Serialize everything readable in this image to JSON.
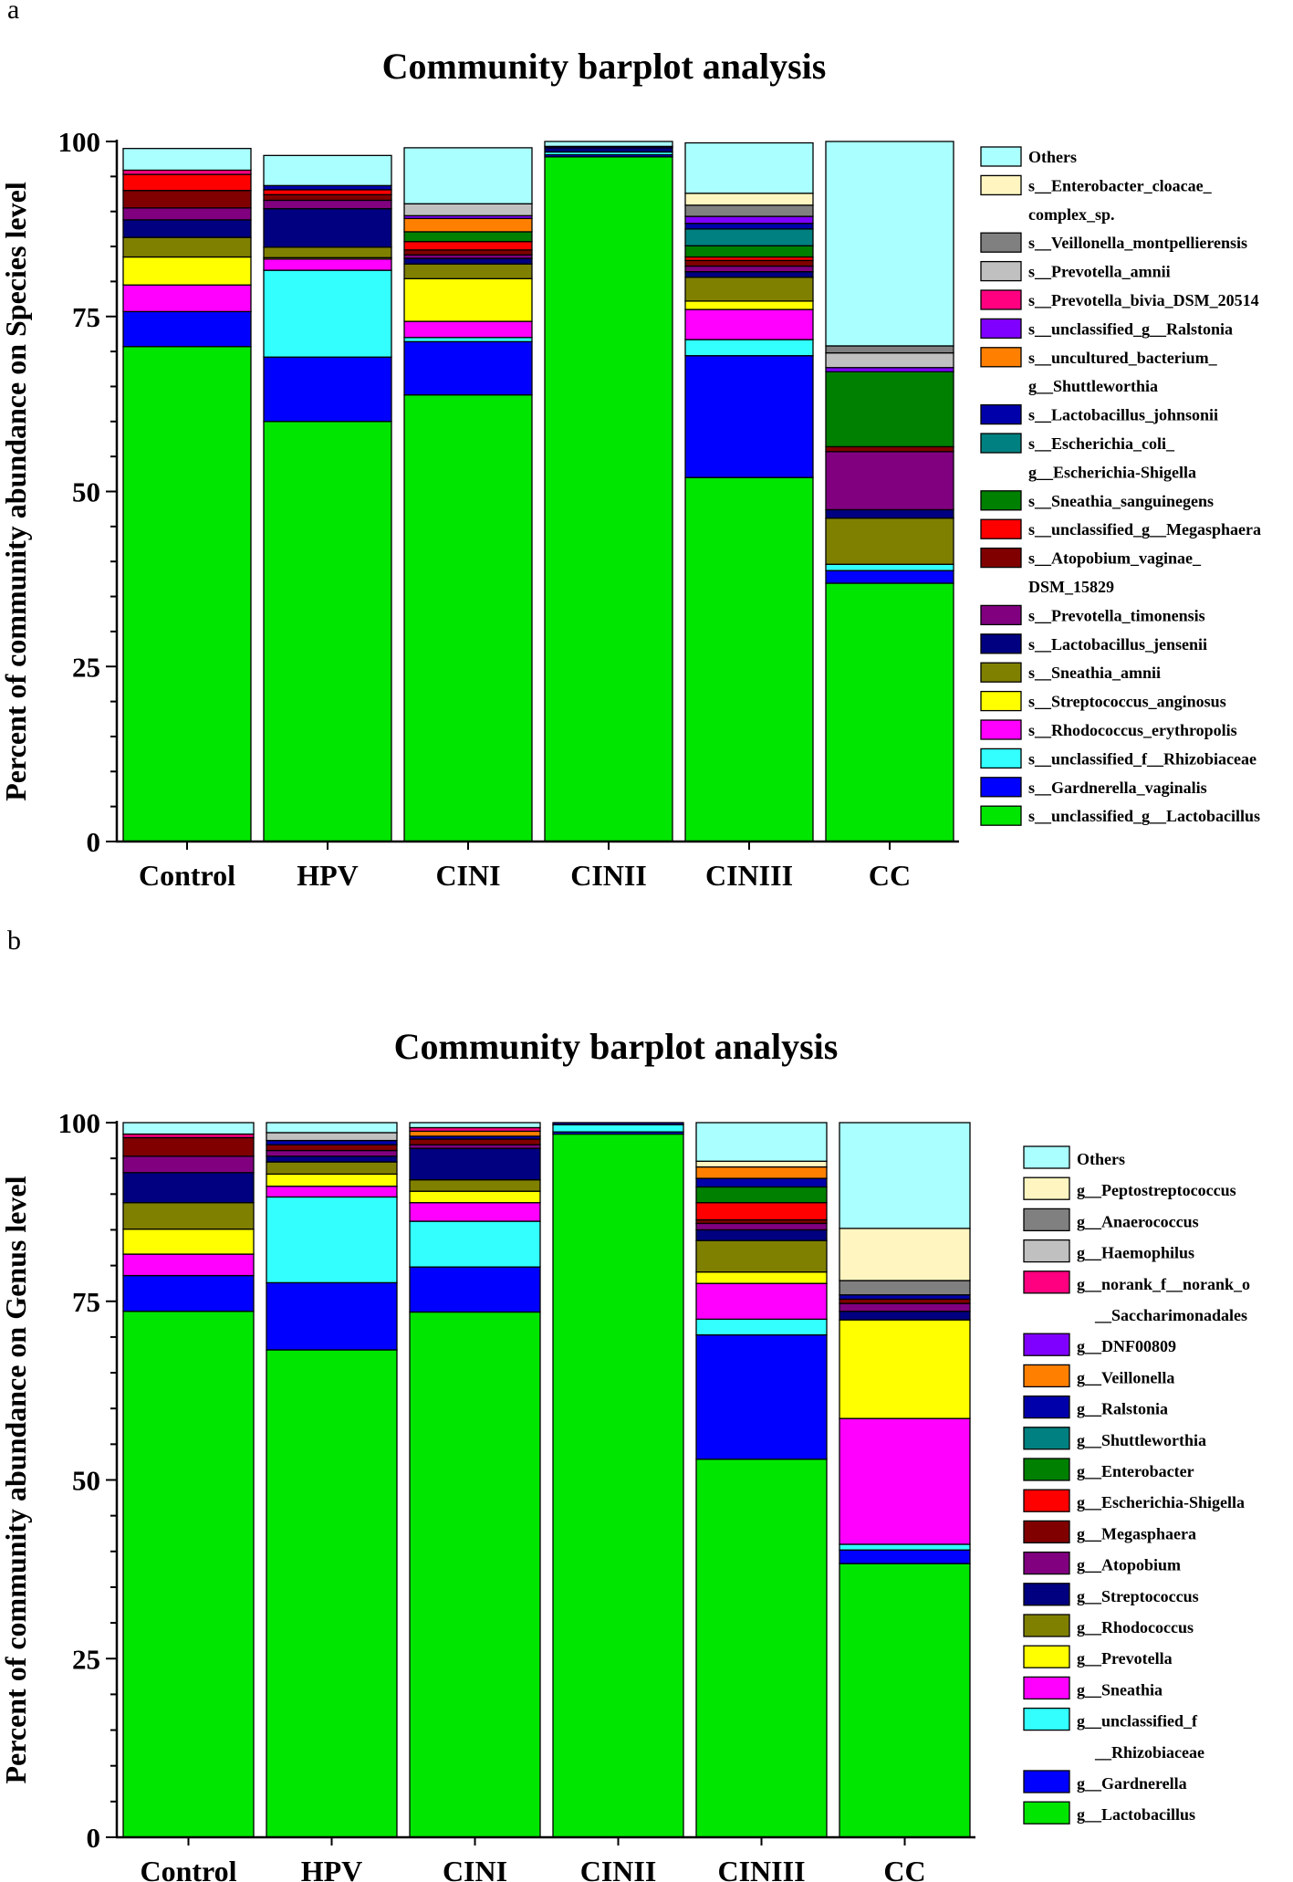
{
  "chart_data": [
    {
      "panel": "a",
      "type": "bar",
      "stacked": true,
      "title": "Community barplot analysis",
      "xlabel": "",
      "ylabel": "Percent of community abundance on Species level",
      "ylim": [
        0,
        100
      ],
      "yticks": [
        0,
        25,
        50,
        75,
        100
      ],
      "grid": false,
      "legend_position": "right",
      "categories": [
        "Control",
        "HPV",
        "CINI",
        "CINII",
        "CINIII",
        "CC"
      ],
      "series": [
        {
          "name": "s__unclassified_g__Lactobacillus",
          "legend_lines": [
            "s__unclassified_g__Lactobacillus"
          ],
          "color": "#00e600",
          "values": [
            70.7,
            60.0,
            63.8,
            97.8,
            52.0,
            36.9
          ]
        },
        {
          "name": "s__Gardnerella_vaginalis",
          "legend_lines": [
            "s__Gardnerella_vaginalis"
          ],
          "color": "#0000ff",
          "values": [
            5.0,
            9.2,
            7.6,
            0.3,
            17.4,
            1.8
          ]
        },
        {
          "name": "s__unclassified_f__Rhizobiaceae",
          "legend_lines": [
            "s__unclassified_f__Rhizobiaceae"
          ],
          "color": "#33ffff",
          "values": [
            0.0,
            12.4,
            0.6,
            0.4,
            2.3,
            0.9
          ]
        },
        {
          "name": "s__Rhodococcus_erythropolis",
          "legend_lines": [
            "s__Rhodococcus_erythropolis"
          ],
          "color": "#ff00ff",
          "values": [
            3.8,
            1.6,
            2.3,
            0.0,
            4.3,
            0.0
          ]
        },
        {
          "name": "s__Streptococcus_anginosus",
          "legend_lines": [
            "s__Streptococcus_anginosus"
          ],
          "color": "#ffff00",
          "values": [
            4.0,
            0.2,
            6.1,
            0.0,
            1.2,
            0.0
          ]
        },
        {
          "name": "s__Sneathia_amnii",
          "legend_lines": [
            "s__Sneathia_amnii"
          ],
          "color": "#808000",
          "values": [
            2.8,
            1.5,
            2.1,
            0.0,
            3.4,
            6.6
          ]
        },
        {
          "name": "s__Lactobacillus_jensenii",
          "legend_lines": [
            "s__Lactobacillus_jensenii"
          ],
          "color": "#000080",
          "values": [
            2.5,
            5.5,
            0.8,
            0.6,
            0.8,
            1.2
          ]
        },
        {
          "name": "s__Prevotella_timonensis",
          "legend_lines": [
            "s__Prevotella_timonensis"
          ],
          "color": "#800080",
          "values": [
            1.7,
            1.2,
            0.5,
            0.0,
            0.8,
            8.3
          ]
        },
        {
          "name": "s__Atopobium_vaginae_DSM_15829",
          "legend_lines": [
            "s__Atopobium_vaginae_",
            "DSM_15829"
          ],
          "color": "#800000",
          "values": [
            2.5,
            0.8,
            0.7,
            0.0,
            0.8,
            0.7
          ]
        },
        {
          "name": "s__unclassified_g__Megasphaera",
          "legend_lines": [
            "s__unclassified_g__Megasphaera"
          ],
          "color": "#ff0000",
          "values": [
            2.3,
            0.7,
            1.2,
            0.0,
            0.5,
            0.0
          ]
        },
        {
          "name": "s__Sneathia_sanguinegens",
          "legend_lines": [
            "s__Sneathia_sanguinegens"
          ],
          "color": "#008000",
          "values": [
            0.0,
            0.0,
            1.4,
            0.0,
            1.6,
            10.7
          ]
        },
        {
          "name": "s__Escherichia_coli_g__Escherichia-Shigella",
          "legend_lines": [
            "s__Escherichia_coli_",
            "g__Escherichia-Shigella"
          ],
          "color": "#008080",
          "values": [
            0.0,
            0.0,
            0.0,
            0.0,
            2.4,
            0.0
          ]
        },
        {
          "name": "s__Lactobacillus_johnsonii",
          "legend_lines": [
            "s__Lactobacillus_johnsonii"
          ],
          "color": "#0000aa",
          "values": [
            0.0,
            0.6,
            0.0,
            0.2,
            0.8,
            0.0
          ]
        },
        {
          "name": "s__uncultured_bacterium_g__Shuttleworthia",
          "legend_lines": [
            "s__uncultured_bacterium_",
            "g__Shuttleworthia"
          ],
          "color": "#ff8000",
          "values": [
            0.0,
            0.0,
            1.9,
            0.0,
            0.0,
            0.0
          ]
        },
        {
          "name": "s__unclassified_g__Ralstonia",
          "legend_lines": [
            "s__unclassified_g__Ralstonia"
          ],
          "color": "#8000ff",
          "values": [
            0.0,
            0.0,
            0.4,
            0.0,
            1.0,
            0.6
          ]
        },
        {
          "name": "s__Prevotella_bivia_DSM_20514",
          "legend_lines": [
            "s__Prevotella_bivia_DSM_20514"
          ],
          "color": "#ff0080",
          "values": [
            0.6,
            0.0,
            0.0,
            0.0,
            0.0,
            0.0
          ]
        },
        {
          "name": "s__Prevotella_amnii",
          "legend_lines": [
            "s__Prevotella_amnii"
          ],
          "color": "#c0c0c0",
          "values": [
            0.0,
            0.0,
            1.7,
            0.0,
            0.0,
            2.1
          ]
        },
        {
          "name": "s__Veillonella_montpellierensis",
          "legend_lines": [
            "s__Veillonella_montpellierensis"
          ],
          "color": "#808080",
          "values": [
            0.0,
            0.0,
            0.0,
            0.0,
            1.6,
            1.0
          ]
        },
        {
          "name": "s__Enterobacter_cloacae_complex_sp.",
          "legend_lines": [
            "s__Enterobacter_cloacae_",
            "complex_sp."
          ],
          "color": "#fff5c0",
          "values": [
            0.0,
            0.0,
            0.0,
            0.0,
            1.7,
            0.0
          ]
        },
        {
          "name": "Others",
          "legend_lines": [
            "Others"
          ],
          "color": "#aaffff",
          "values": [
            3.1,
            4.3,
            8.0,
            0.7,
            7.2,
            29.2
          ]
        }
      ]
    },
    {
      "panel": "b",
      "type": "bar",
      "stacked": true,
      "title": "Community barplot analysis",
      "xlabel": "",
      "ylabel": "Percent of community abundance on Genus level",
      "ylim": [
        0,
        100
      ],
      "yticks": [
        0,
        25,
        50,
        75,
        100
      ],
      "grid": false,
      "legend_position": "right",
      "categories": [
        "Control",
        "HPV",
        "CINI",
        "CINII",
        "CINIII",
        "CC"
      ],
      "series": [
        {
          "name": "g__Lactobacillus",
          "legend_lines": [
            "g__Lactobacillus"
          ],
          "color": "#00e600",
          "values": [
            73.6,
            68.2,
            73.5,
            98.4,
            52.9,
            38.3
          ]
        },
        {
          "name": "g__Gardnerella",
          "legend_lines": [
            "g__Gardnerella"
          ],
          "color": "#0000ff",
          "values": [
            5.0,
            9.4,
            6.3,
            0.3,
            17.4,
            1.9
          ]
        },
        {
          "name": "g__unclassified_f__Rhizobiaceae",
          "legend_lines": [
            "g__unclassified_f",
            "__Rhizobiaceae"
          ],
          "color": "#33ffff",
          "values": [
            0.0,
            12.0,
            6.4,
            1.0,
            2.2,
            0.8
          ]
        },
        {
          "name": "g__Sneathia",
          "legend_lines": [
            "g__Sneathia"
          ],
          "color": "#ff00ff",
          "values": [
            3.0,
            1.5,
            2.6,
            0.0,
            5.0,
            17.6
          ]
        },
        {
          "name": "g__Prevotella",
          "legend_lines": [
            "g__Prevotella"
          ],
          "color": "#ffff00",
          "values": [
            3.5,
            1.7,
            1.6,
            0.0,
            1.6,
            13.8
          ]
        },
        {
          "name": "g__Rhodococcus",
          "legend_lines": [
            "g__Rhodococcus"
          ],
          "color": "#808000",
          "values": [
            3.7,
            1.7,
            1.6,
            0.0,
            4.4,
            0.0
          ]
        },
        {
          "name": "g__Streptococcus",
          "legend_lines": [
            "g__Streptococcus"
          ],
          "color": "#000080",
          "values": [
            4.2,
            0.8,
            4.4,
            0.0,
            1.5,
            1.2
          ]
        },
        {
          "name": "g__Atopobium",
          "legend_lines": [
            "g__Atopobium"
          ],
          "color": "#800080",
          "values": [
            2.3,
            0.8,
            0.5,
            0.0,
            0.9,
            1.1
          ]
        },
        {
          "name": "g__Megasphaera",
          "legend_lines": [
            "g__Megasphaera"
          ],
          "color": "#800000",
          "values": [
            2.6,
            0.8,
            0.8,
            0.0,
            0.5,
            0.6
          ]
        },
        {
          "name": "g__Escherichia-Shigella",
          "legend_lines": [
            "g__Escherichia-Shigella"
          ],
          "color": "#ff0000",
          "values": [
            0.0,
            0.0,
            0.0,
            0.0,
            2.4,
            0.0
          ]
        },
        {
          "name": "g__Enterobacter",
          "legend_lines": [
            "g__Enterobacter"
          ],
          "color": "#008000",
          "values": [
            0.0,
            0.0,
            0.0,
            0.0,
            2.2,
            0.0
          ]
        },
        {
          "name": "g__Shuttleworthia",
          "legend_lines": [
            "g__Shuttleworthia"
          ],
          "color": "#008080",
          "values": [
            0.0,
            0.0,
            0.0,
            0.0,
            0.0,
            0.0
          ]
        },
        {
          "name": "g__Ralstonia",
          "legend_lines": [
            "g__Ralstonia"
          ],
          "color": "#0000aa",
          "values": [
            0.0,
            0.6,
            0.4,
            0.3,
            1.2,
            0.6
          ]
        },
        {
          "name": "g__Veillonella",
          "legend_lines": [
            "g__Veillonella"
          ],
          "color": "#ff8000",
          "values": [
            0.0,
            0.0,
            0.7,
            0.0,
            1.6,
            0.0
          ]
        },
        {
          "name": "g__DNF00809",
          "legend_lines": [
            "g__DNF00809"
          ],
          "color": "#8000ff",
          "values": [
            0.0,
            0.0,
            0.0,
            0.0,
            0.0,
            0.0
          ]
        },
        {
          "name": "g__norank_f__norank_o__Saccharimonadales",
          "legend_lines": [
            "g__norank_f__norank_o",
            "__Saccharimonadales"
          ],
          "color": "#ff0080",
          "values": [
            0.5,
            0.0,
            0.5,
            0.0,
            0.0,
            0.0
          ]
        },
        {
          "name": "g__Haemophilus",
          "legend_lines": [
            "g__Haemophilus"
          ],
          "color": "#c0c0c0",
          "values": [
            0.0,
            1.1,
            0.0,
            0.0,
            0.0,
            0.0
          ]
        },
        {
          "name": "g__Anaerococcus",
          "legend_lines": [
            "g__Anaerococcus"
          ],
          "color": "#808080",
          "values": [
            0.0,
            0.0,
            0.0,
            0.0,
            0.0,
            2.0
          ]
        },
        {
          "name": "g__Peptostreptococcus",
          "legend_lines": [
            "g__Peptostreptococcus"
          ],
          "color": "#fff5c0",
          "values": [
            0.0,
            0.0,
            0.0,
            0.0,
            0.8,
            7.3
          ]
        },
        {
          "name": "Others",
          "legend_lines": [
            "Others"
          ],
          "color": "#aaffff",
          "values": [
            1.6,
            1.4,
            0.7,
            0.0,
            5.4,
            14.8
          ]
        }
      ]
    }
  ]
}
